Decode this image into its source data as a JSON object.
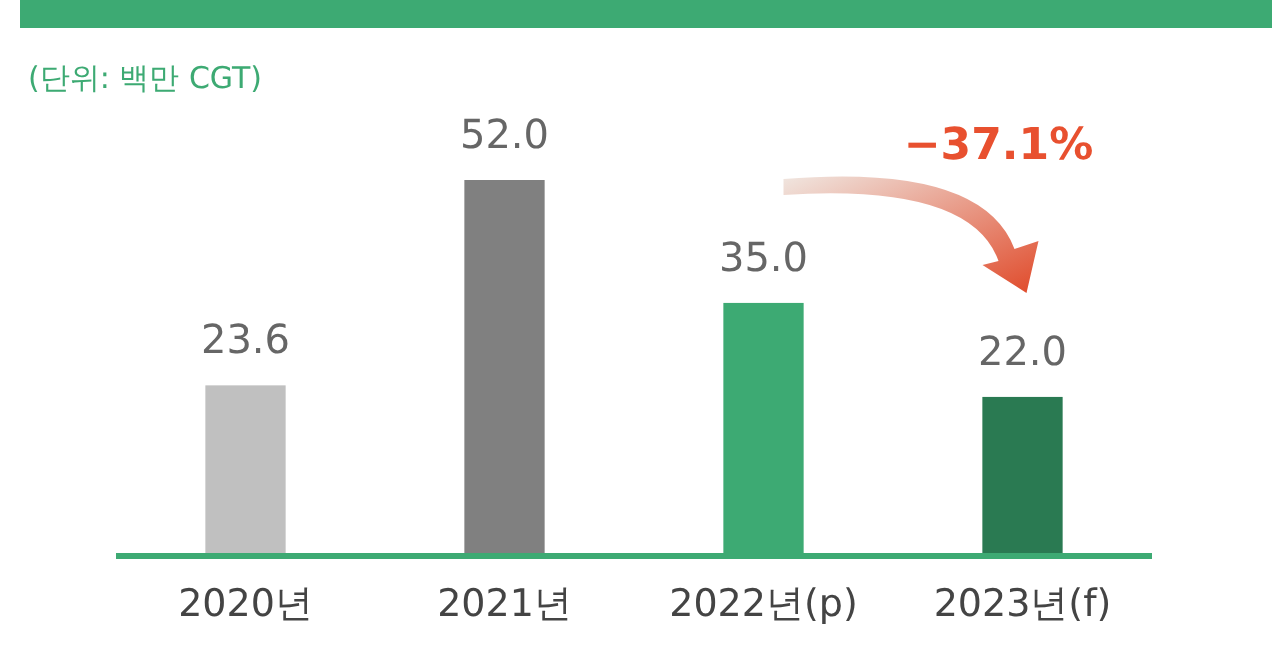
{
  "chart_data": {
    "type": "bar",
    "subtitle": "(단위: 백만 CGT)",
    "categories": [
      "2020년",
      "2021년",
      "2022년(p)",
      "2023년(f)"
    ],
    "values": [
      23.6,
      52.0,
      35.0,
      22.0
    ],
    "value_labels": [
      "23.6",
      "52.0",
      "35.0",
      "22.0"
    ],
    "colors": [
      "#c0c0c0",
      "#808080",
      "#3daa73",
      "#2a7a52"
    ],
    "annotations": [
      "−37.1%"
    ]
  }
}
